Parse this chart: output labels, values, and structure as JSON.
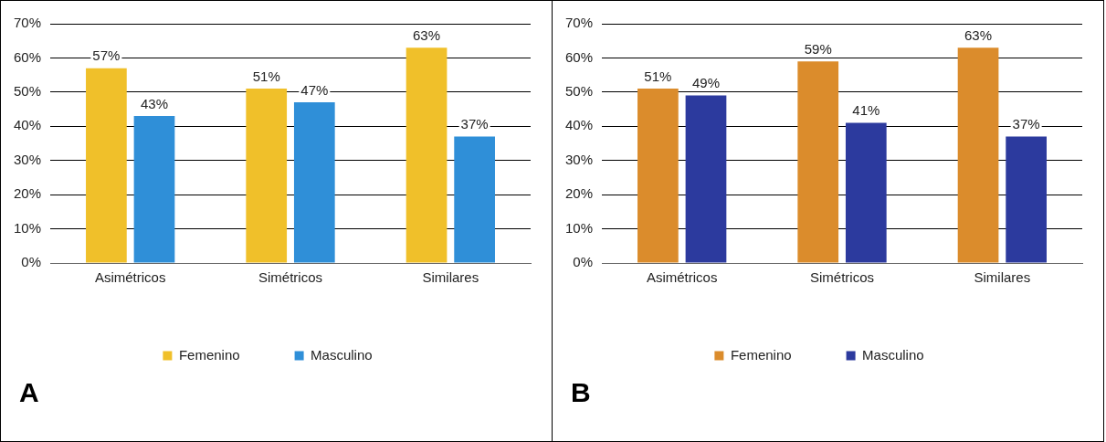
{
  "chart_data": [
    {
      "type": "bar",
      "categories": [
        "Asimétricos",
        "Simétricos",
        "Similares"
      ],
      "series": [
        {
          "name": "Femenino",
          "color": "#f0c02a",
          "values": [
            57,
            51,
            63
          ],
          "value_labels": [
            "57%",
            "51%",
            "63%"
          ]
        },
        {
          "name": "Masculino",
          "color": "#2f8fd8",
          "values": [
            43,
            47,
            37
          ],
          "value_labels": [
            "43%",
            "47%",
            "37%"
          ]
        }
      ],
      "ylim": [
        0,
        70
      ],
      "yticks": [
        {
          "value": 0,
          "label": "0%"
        },
        {
          "value": 10,
          "label": "10%"
        },
        {
          "value": 20,
          "label": "20%"
        },
        {
          "value": 30,
          "label": "30%"
        },
        {
          "value": 40,
          "label": "40%"
        },
        {
          "value": 50,
          "label": "50%"
        },
        {
          "value": 60,
          "label": "60%"
        },
        {
          "value": 70,
          "label": "70%"
        }
      ],
      "grid": "y",
      "legend": "bottom",
      "annotations": [
        "A"
      ]
    },
    {
      "type": "bar",
      "categories": [
        "Asimétricos",
        "Simétricos",
        "Similares"
      ],
      "series": [
        {
          "name": "Femenino",
          "color": "#db8c2c",
          "values": [
            51,
            59,
            63
          ],
          "value_labels": [
            "51%",
            "59%",
            "63%"
          ]
        },
        {
          "name": "Masculino",
          "color": "#2c3a9e",
          "values": [
            49,
            41,
            37
          ],
          "value_labels": [
            "49%",
            "41%",
            "37%"
          ]
        }
      ],
      "ylim": [
        0,
        70
      ],
      "yticks": [
        {
          "value": 0,
          "label": "0%"
        },
        {
          "value": 10,
          "label": "10%"
        },
        {
          "value": 20,
          "label": "20%"
        },
        {
          "value": 30,
          "label": "30%"
        },
        {
          "value": 40,
          "label": "40%"
        },
        {
          "value": 50,
          "label": "50%"
        },
        {
          "value": 60,
          "label": "60%"
        },
        {
          "value": 70,
          "label": "70%"
        }
      ],
      "grid": "y",
      "legend": "bottom",
      "annotations": [
        "B"
      ]
    }
  ]
}
